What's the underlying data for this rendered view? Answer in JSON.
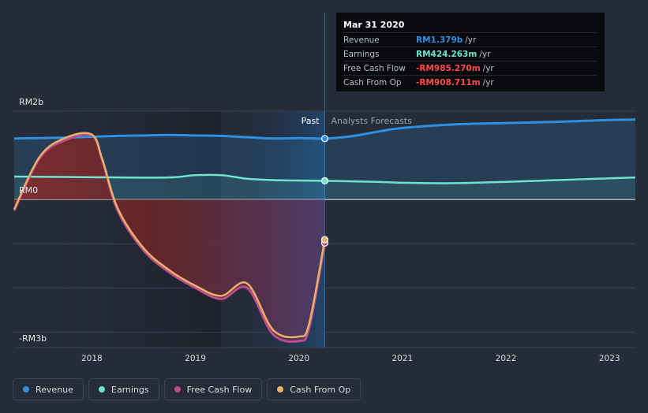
{
  "chart_data": {
    "type": "line",
    "title": "",
    "xlabel": "",
    "ylabel": "",
    "x_ticks": [
      "2018",
      "2019",
      "2020",
      "2021",
      "2022",
      "2023"
    ],
    "y_tick_labels": [
      "RM2b",
      "RM0",
      "-RM3b"
    ],
    "ylim_billions": [
      -3.35,
      2.0
    ],
    "xlim_years": [
      2017.25,
      2023.25
    ],
    "past_start_year": 2019.25,
    "divider_year": 2020.25,
    "region_labels": {
      "past": "Past",
      "forecast": "Analysts Forecasts"
    },
    "series": [
      {
        "name": "Revenue",
        "color": "#2f8fe0",
        "x": [
          2017.25,
          2017.5,
          2017.75,
          2018.0,
          2018.25,
          2018.5,
          2018.75,
          2019.0,
          2019.25,
          2019.5,
          2019.75,
          2020.0,
          2020.25,
          2020.5,
          2020.75,
          2021.0,
          2021.5,
          2022.0,
          2022.5,
          2023.0,
          2023.25
        ],
        "values": [
          1.38,
          1.39,
          1.4,
          1.42,
          1.44,
          1.45,
          1.46,
          1.45,
          1.44,
          1.41,
          1.38,
          1.39,
          1.379,
          1.43,
          1.53,
          1.62,
          1.7,
          1.73,
          1.76,
          1.8,
          1.81
        ]
      },
      {
        "name": "Earnings",
        "color": "#6fe3d0",
        "x": [
          2017.25,
          2017.75,
          2018.25,
          2018.75,
          2019.0,
          2019.25,
          2019.5,
          2019.75,
          2020.0,
          2020.25,
          2020.75,
          2021.0,
          2021.5,
          2022.0,
          2022.5,
          2023.0,
          2023.25
        ],
        "values": [
          0.52,
          0.51,
          0.5,
          0.5,
          0.55,
          0.55,
          0.47,
          0.44,
          0.43,
          0.424,
          0.4,
          0.38,
          0.37,
          0.4,
          0.44,
          0.48,
          0.5
        ]
      },
      {
        "name": "Free Cash Flow",
        "color": "#c14a8a",
        "x": [
          2017.25,
          2017.5,
          2017.75,
          2018.0,
          2018.1,
          2018.25,
          2018.5,
          2018.75,
          2019.0,
          2019.25,
          2019.5,
          2019.75,
          2020.0,
          2020.1,
          2020.25
        ],
        "values": [
          -0.25,
          0.95,
          1.35,
          1.45,
          0.9,
          -0.25,
          -1.15,
          -1.65,
          -2.0,
          -2.25,
          -2.0,
          -3.05,
          -3.2,
          -2.9,
          -0.985
        ]
      },
      {
        "name": "Cash From Op",
        "color": "#e7b169",
        "x": [
          2017.25,
          2017.5,
          2017.75,
          2018.0,
          2018.1,
          2018.25,
          2018.5,
          2018.75,
          2019.0,
          2019.25,
          2019.5,
          2019.75,
          2020.0,
          2020.1,
          2020.25
        ],
        "values": [
          -0.22,
          0.98,
          1.4,
          1.47,
          0.92,
          -0.2,
          -1.1,
          -1.6,
          -1.95,
          -2.18,
          -1.9,
          -2.95,
          -3.1,
          -2.8,
          -0.909
        ]
      }
    ],
    "tooltip": {
      "title": "Mar 31 2020",
      "rows": [
        {
          "label": "Revenue",
          "value": "RM1.379b",
          "unit": "/yr",
          "color": "#2f8fe0"
        },
        {
          "label": "Earnings",
          "value": "RM424.263m",
          "unit": "/yr",
          "color": "#6fe3d0"
        },
        {
          "label": "Free Cash Flow",
          "value": "-RM985.270m",
          "unit": "/yr",
          "color": "#ff4b4b"
        },
        {
          "label": "Cash From Op",
          "value": "-RM908.711m",
          "unit": "/yr",
          "color": "#ff4b4b"
        }
      ]
    }
  },
  "legend": [
    {
      "label": "Revenue",
      "color": "#2f8fe0"
    },
    {
      "label": "Earnings",
      "color": "#6fe3d0"
    },
    {
      "label": "Free Cash Flow",
      "color": "#c14a8a"
    },
    {
      "label": "Cash From Op",
      "color": "#e7b169"
    }
  ]
}
